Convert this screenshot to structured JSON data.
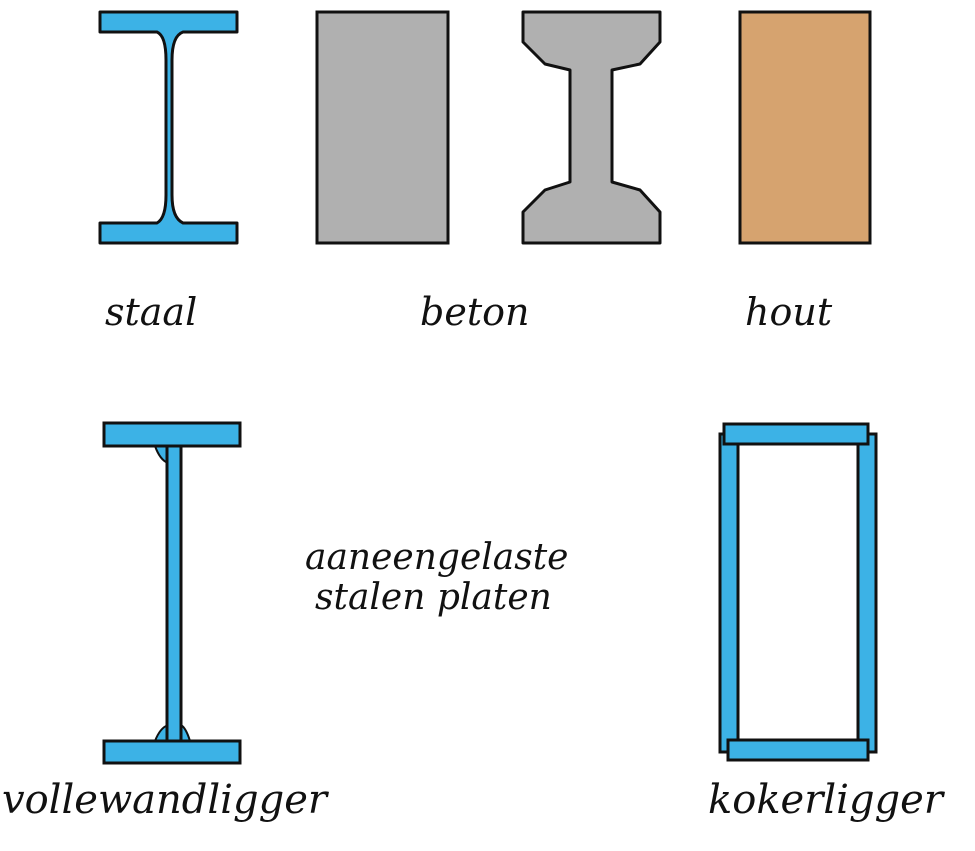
{
  "labels": {
    "staal": "staal",
    "beton": "beton",
    "hout": "hout",
    "plates_line1": "aaneengelaste",
    "plates_line2": "stalen platen",
    "vollewandligger": "vollewandligger",
    "kokerligger": "kokerligger"
  },
  "colors": {
    "steel": "#3cb2e6",
    "concrete": "#b0b0b0",
    "wood": "#d6a36f",
    "outline": "#111111"
  }
}
